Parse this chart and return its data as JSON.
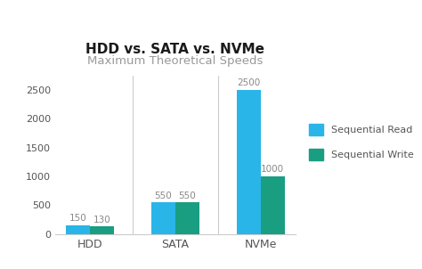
{
  "title": "HDD vs. SATA vs. NVMe",
  "subtitle": "Maximum Theoretical Speeds",
  "categories": [
    "HDD",
    "SATA",
    "NVMe"
  ],
  "sequential_read": [
    150,
    550,
    2500
  ],
  "sequential_write": [
    130,
    550,
    1000
  ],
  "color_read": "#29b5e8",
  "color_write": "#1a9e82",
  "ylim": [
    0,
    2750
  ],
  "yticks": [
    0,
    500,
    1000,
    1500,
    2000,
    2500
  ],
  "bar_width": 0.28,
  "title_fontsize": 11,
  "subtitle_fontsize": 9.5,
  "label_fontsize": 7.5,
  "tick_fontsize": 8,
  "legend_fontsize": 8,
  "background_color": "#ffffff",
  "title_color": "#1a1a1a",
  "subtitle_color": "#999999",
  "tick_color": "#555555",
  "value_label_color": "#888888"
}
